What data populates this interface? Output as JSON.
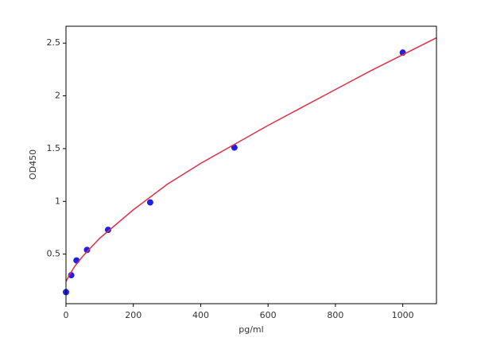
{
  "chart_data": {
    "type": "scatter",
    "xlabel": "pg/ml",
    "ylabel": "OD450",
    "xlim": [
      0,
      1100
    ],
    "ylim": [
      0.03,
      2.66
    ],
    "xticks": [
      0,
      200,
      400,
      600,
      800,
      1000
    ],
    "yticks": [
      0.5,
      1.0,
      1.5,
      2.0,
      2.5
    ],
    "series": [
      {
        "type": "scatter",
        "color": "#1f1fe6",
        "x": [
          0,
          15.6,
          31.25,
          62.5,
          125,
          250,
          500,
          1000
        ],
        "values": [
          0.14,
          0.3,
          0.44,
          0.54,
          0.73,
          0.99,
          1.51,
          2.41
        ]
      },
      {
        "type": "line",
        "color": "#e0304a",
        "x": [
          0,
          10,
          25,
          50,
          100,
          200,
          300,
          400,
          500,
          600,
          700,
          800,
          900,
          1000,
          1100
        ],
        "values": [
          0.24,
          0.3,
          0.38,
          0.48,
          0.65,
          0.92,
          1.16,
          1.36,
          1.54,
          1.72,
          1.89,
          2.06,
          2.23,
          2.39,
          2.55
        ]
      }
    ]
  }
}
